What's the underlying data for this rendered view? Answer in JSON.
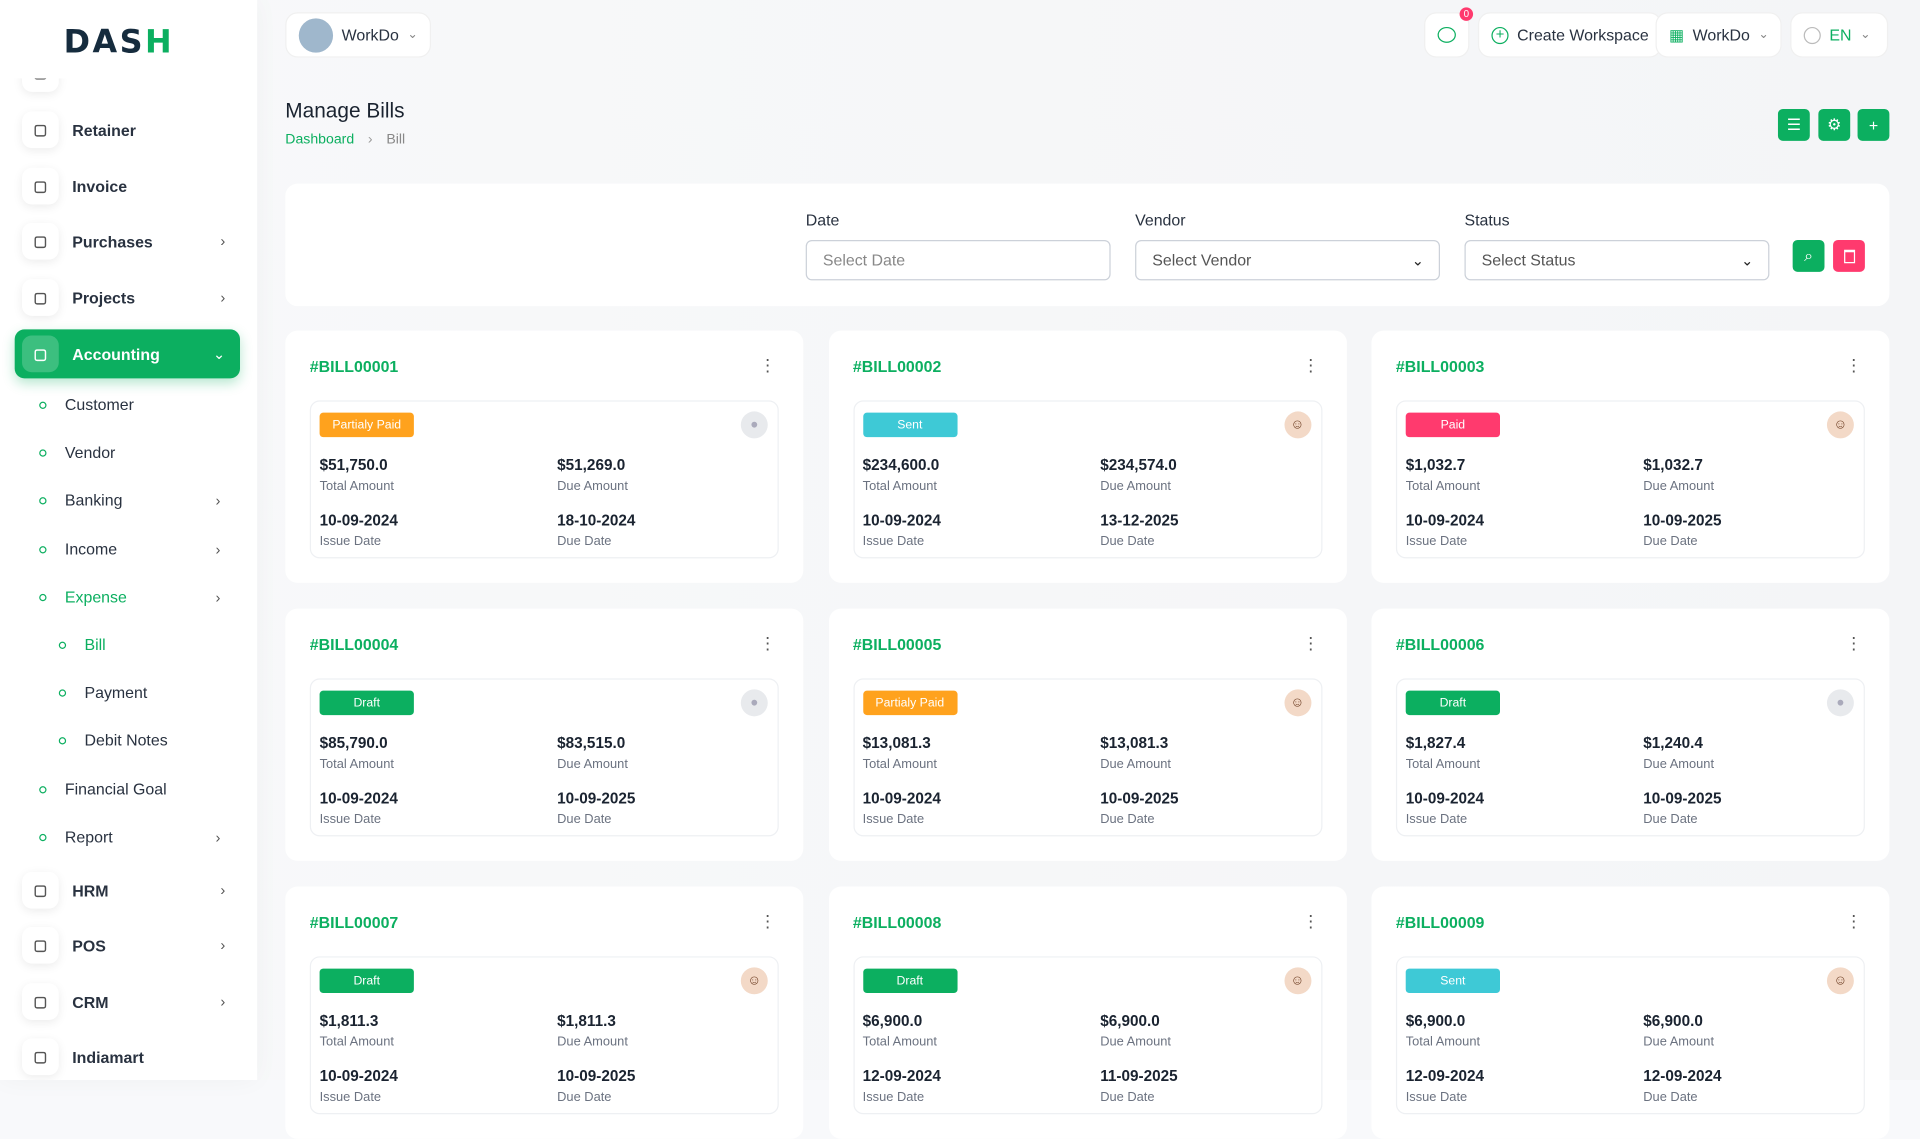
{
  "brand": {
    "logo": "DASH",
    "accent": "#0caf60"
  },
  "header": {
    "workspace": "WorkDo",
    "notification_count": "0",
    "create_workspace": "Create Workspace",
    "company": "WorkDo",
    "language": "EN"
  },
  "page": {
    "title": "Manage Bills",
    "breadcrumb": [
      "Dashboard",
      "Bill"
    ]
  },
  "sidebar": {
    "items": [
      {
        "label": "Retainer",
        "icon": "file-icon"
      },
      {
        "label": "Invoice",
        "icon": "invoice-icon"
      },
      {
        "label": "Purchases",
        "icon": "cart-icon",
        "chevron": true
      },
      {
        "label": "Projects",
        "icon": "check-square-icon",
        "chevron": true
      },
      {
        "label": "Accounting",
        "icon": "grid-icon",
        "chevron": true,
        "active": true
      }
    ],
    "sub": [
      {
        "label": "Customer"
      },
      {
        "label": "Vendor"
      },
      {
        "label": "Banking",
        "chevron": true
      },
      {
        "label": "Income",
        "chevron": true
      },
      {
        "label": "Expense",
        "chevron": true,
        "active": true
      }
    ],
    "expense_sub": [
      {
        "label": "Bill",
        "active": true
      },
      {
        "label": "Payment"
      },
      {
        "label": "Debit Notes"
      }
    ],
    "sub2": [
      {
        "label": "Financial Goal"
      },
      {
        "label": "Report",
        "chevron": true
      }
    ],
    "bottom": [
      {
        "label": "HRM",
        "icon": "settings-icon"
      },
      {
        "label": "POS",
        "icon": "grid-dots-icon"
      },
      {
        "label": "CRM",
        "icon": "layers-icon"
      },
      {
        "label": "Indiamart",
        "icon": "list-icon"
      }
    ]
  },
  "filters": {
    "date_label": "Date",
    "date_placeholder": "Select Date",
    "vendor_label": "Vendor",
    "vendor_value": "Select Vendor",
    "status_label": "Status",
    "status_value": "Select Status"
  },
  "status_colors": {
    "Partialy Paid": "#ffa21d",
    "Sent": "#3ec9d6",
    "Paid": "#ff3a6e",
    "Draft": "#0caf60"
  },
  "labels": {
    "total": "Total Amount",
    "due": "Due Amount",
    "issue": "Issue Date",
    "due_date": "Due Date"
  },
  "bills": [
    {
      "id": "#BILL00001",
      "status": "Partialy Paid",
      "total": "$51,750.0",
      "due": "$51,269.0",
      "issue_date": "10-09-2024",
      "due_date": "18-10-2024",
      "avatar": "default"
    },
    {
      "id": "#BILL00002",
      "status": "Sent",
      "total": "$234,600.0",
      "due": "$234,574.0",
      "issue_date": "10-09-2024",
      "due_date": "13-12-2025",
      "avatar": "photo"
    },
    {
      "id": "#BILL00003",
      "status": "Paid",
      "total": "$1,032.7",
      "due": "$1,032.7",
      "issue_date": "10-09-2024",
      "due_date": "10-09-2025",
      "avatar": "photo"
    },
    {
      "id": "#BILL00004",
      "status": "Draft",
      "total": "$85,790.0",
      "due": "$83,515.0",
      "issue_date": "10-09-2024",
      "due_date": "10-09-2025",
      "avatar": "default"
    },
    {
      "id": "#BILL00005",
      "status": "Partialy Paid",
      "total": "$13,081.3",
      "due": "$13,081.3",
      "issue_date": "10-09-2024",
      "due_date": "10-09-2025",
      "avatar": "photo"
    },
    {
      "id": "#BILL00006",
      "status": "Draft",
      "total": "$1,827.4",
      "due": "$1,240.4",
      "issue_date": "10-09-2024",
      "due_date": "10-09-2025",
      "avatar": "default"
    },
    {
      "id": "#BILL00007",
      "status": "Draft",
      "total": "$1,811.3",
      "due": "$1,811.3",
      "issue_date": "10-09-2024",
      "due_date": "10-09-2025",
      "avatar": "photo"
    },
    {
      "id": "#BILL00008",
      "status": "Draft",
      "total": "$6,900.0",
      "due": "$6,900.0",
      "issue_date": "12-09-2024",
      "due_date": "11-09-2025",
      "avatar": "photo"
    },
    {
      "id": "#BILL00009",
      "status": "Sent",
      "total": "$6,900.0",
      "due": "$6,900.0",
      "issue_date": "12-09-2024",
      "due_date": "12-09-2024",
      "avatar": "photo"
    }
  ]
}
